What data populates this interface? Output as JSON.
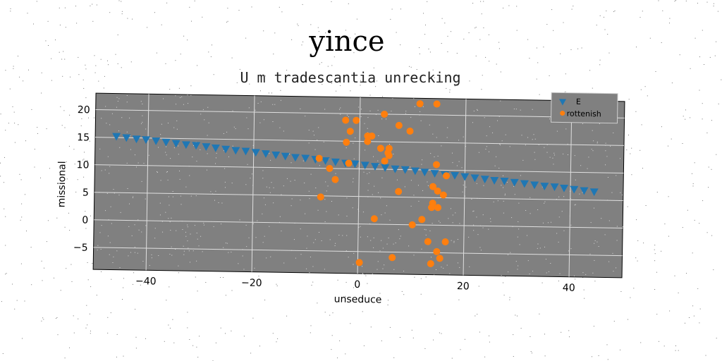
{
  "chart_data": {
    "type": "scatter",
    "suptitle": "yince",
    "title": "U m tradescantia unrecking",
    "xlabel": "unseduce",
    "ylabel": "missional",
    "xlim": [
      -50,
      50
    ],
    "ylim": [
      -9,
      23
    ],
    "xticks": [
      -40,
      -20,
      0,
      20,
      40
    ],
    "yticks": [
      -5,
      0,
      5,
      10,
      15,
      20
    ],
    "grid": true,
    "legend_position": "top-right",
    "background": "#808080",
    "series": [
      {
        "name": "E",
        "marker": "triangle-down",
        "color": "#1f77b4",
        "x": [
          -46.0,
          -44.1,
          -42.2,
          -40.4,
          -38.5,
          -36.6,
          -34.7,
          -32.8,
          -30.9,
          -29.0,
          -27.2,
          -25.3,
          -23.4,
          -21.5,
          -19.6,
          -17.7,
          -15.8,
          -14.0,
          -12.1,
          -10.2,
          -8.3,
          -6.4,
          -4.5,
          -2.6,
          -0.8,
          1.1,
          3.0,
          4.9,
          6.8,
          8.7,
          10.6,
          12.4,
          14.3,
          16.2,
          18.1,
          20.0,
          21.9,
          23.8,
          25.6,
          27.5,
          29.4,
          31.3,
          33.2,
          35.1,
          37.0,
          38.8,
          40.7,
          42.6,
          44.5
        ],
        "y": [
          15.2,
          15.0,
          14.8,
          14.7,
          14.5,
          14.3,
          14.1,
          13.9,
          13.8,
          13.6,
          13.4,
          13.2,
          13.0,
          12.9,
          12.7,
          12.5,
          12.3,
          12.1,
          11.9,
          11.8,
          11.6,
          11.4,
          11.2,
          11.0,
          10.9,
          10.7,
          10.5,
          10.3,
          10.1,
          10.0,
          9.8,
          9.6,
          9.4,
          9.2,
          9.1,
          8.9,
          8.7,
          8.5,
          8.3,
          8.2,
          8.0,
          7.8,
          7.6,
          7.4,
          7.3,
          7.1,
          6.9,
          6.7,
          6.5
        ]
      },
      {
        "name": "rottenish",
        "marker": "circle",
        "color": "#ff7f0e",
        "x": [
          11.3,
          14.5,
          -2.7,
          -0.7,
          4.6,
          7.4,
          9.5,
          -1.8,
          1.5,
          2.3,
          1.5,
          -2.5,
          4.0,
          5.6,
          5.4,
          5.6,
          4.8,
          -7.6,
          14.6,
          -2.0,
          -5.6,
          16.5,
          -4.5,
          14.0,
          14.9,
          7.5,
          16.0,
          -7.2,
          14.0,
          15.0,
          13.8,
          12.0,
          3.0,
          10.2,
          13.2,
          16.5,
          14.9,
          6.5,
          15.5,
          13.8,
          0.3
        ],
        "y": [
          22.0,
          22.0,
          18.8,
          18.8,
          20.0,
          18.0,
          17.0,
          16.8,
          16.0,
          16.0,
          15.0,
          14.8,
          13.8,
          13.8,
          13.0,
          12.5,
          11.5,
          11.8,
          11.0,
          11.0,
          10.0,
          9.0,
          8.0,
          7.0,
          6.2,
          6.0,
          5.5,
          4.8,
          4.0,
          3.2,
          3.2,
          1.0,
          1.0,
          0.0,
          -3.0,
          -3.0,
          -4.8,
          -6.0,
          -6.0,
          -7.0,
          -7.0
        ]
      }
    ]
  }
}
